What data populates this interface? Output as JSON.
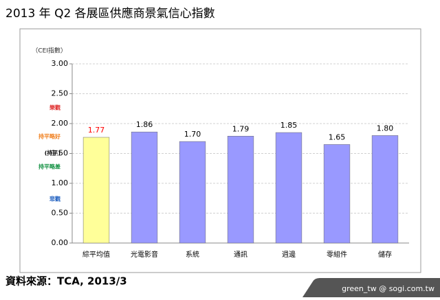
{
  "chart_data": {
    "type": "bar",
    "title": "2013 年 Q2 各展區供應商景氣信心指數",
    "y_label": "（CEI指數）",
    "annotations": [
      {
        "text": "樂觀",
        "color": "#e03030"
      },
      {
        "text": "持平略好",
        "color": "#f08020"
      },
      {
        "text": "(持平)",
        "color": "#000000"
      },
      {
        "text": "持平略差",
        "color": "#109040"
      },
      {
        "text": "悲觀",
        "color": "#2060c0"
      }
    ],
    "categories": [
      "綜平均值",
      "光電影音",
      "系統",
      "通訊",
      "週邊",
      "零組件",
      "儲存"
    ],
    "values": [
      1.77,
      1.86,
      1.7,
      1.79,
      1.85,
      1.65,
      1.8
    ],
    "value_labels": [
      "1.77",
      "1.86",
      "1.70",
      "1.79",
      "1.85",
      "1.65",
      "1.80"
    ],
    "colors": [
      "#ffff99",
      "#9999ff",
      "#9999ff",
      "#9999ff",
      "#9999ff",
      "#9999ff",
      "#9999ff"
    ],
    "value_label_colors": [
      "#ff0000",
      "#000000",
      "#000000",
      "#000000",
      "#000000",
      "#000000",
      "#000000"
    ],
    "ylim": [
      0,
      3
    ],
    "yticks": [
      {
        "value": 0,
        "label": "0.00"
      },
      {
        "value": 0.5,
        "label": "0.50"
      },
      {
        "value": 1,
        "label": "1.00"
      },
      {
        "value": 1.5,
        "label": "1.50"
      },
      {
        "value": 2,
        "label": "2.00"
      },
      {
        "value": 2.5,
        "label": "2.50"
      },
      {
        "value": 3,
        "label": "3.00"
      }
    ],
    "grid": true,
    "source": "資料來源：TCA, 2013/3",
    "footer": "green_tw  @ sogi.com.tw"
  }
}
